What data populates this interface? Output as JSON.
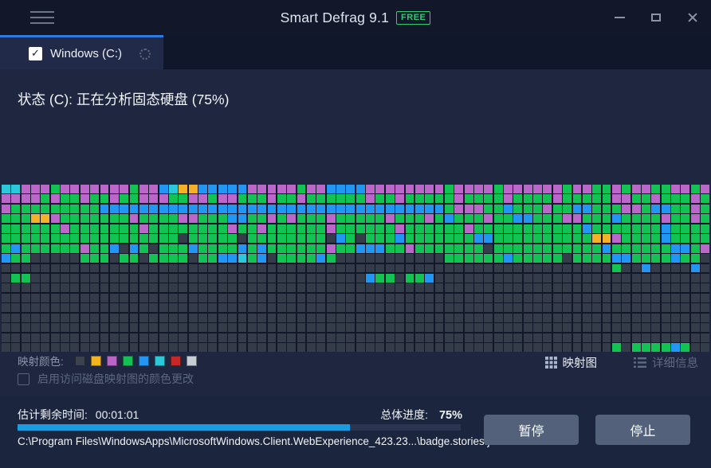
{
  "titlebar": {
    "title": "Smart Defrag 9.1",
    "badge": "FREE"
  },
  "tab": {
    "label": "Windows (C:)",
    "check_glyph": "✓"
  },
  "status": {
    "text": "状态 (C): 正在分析固态硬盘 (75%)"
  },
  "disk_map": {
    "columns": 72,
    "rows": 17,
    "palette": {
      "G": "#12c353",
      "P": "#bb66c9",
      "B": "#2196f3",
      "C": "#2bc8d9",
      "O": "#f5b229",
      "E": "#343c49"
    },
    "cells": [
      "CCPPPGPPPPPPPGPPBCOOBBBBBPPPPPGPPBBBBPPPPPPPPGPPPPGPPPPPPGPPGGPGPPGGPPGP",
      "PPPPGPGGPGGPGGPPPGGPPGPPGGGPGGPGGGGGGPGGPGGGGGPGGGGPGGGGPGGGGGPPGGPGGGPG",
      "PGGGGGGGGGBBBBBBBBBBBBBBBBBBBBBBBBBBBBBBBBBBBGPPPGGBGGGPGGBBGGGPPGBBGGPG",
      "GGGOOPGGGGGGGPGGGGPPGGGBBGGPGPGGGPGGGGGPGGGPGBGGGPGGBBGGGPPGGGBGGGGPGGPG",
      "GGGGGGPGGGGGGGPGGGGGGGGPGGPGGGGGGPGGGGGGPGGGGGGPGGGGGGGGGGGBGGGGGGGBGGGG",
      "GGGGGGGGGGGGGGGGGGEGGGGGEGGGGGGGGEBGEGGGBGGGGGGGBBGGGGGGGGGGOOPGGGGBGGGG",
      "GBGGGGGGPGGBEBGEGGGBGGGGBGBGGGGGGPGGBBBGGPGGGGGGGEGGGGGGGGGGGBGGGGGGBBGP",
      "BGGEEEEEGGGEGGEGGGGEGGBBCGBEGGGGBGEEEEEEEEEEEGGGGGGBGGGGGEGGGGBBGGGGBGGE",
      "EEEEEEEEEEEEEEEEEEEEEEEEEEEEEEEEEEEEEEEEEEEEEEEEEEEEEEEEEEEEEEGEEBEEEEBE",
      "EGGEEEEEEEEEEEEEEEEEEEEEEEEEEEEEEEEEEBGGEGGBEEEEEEEEEEEEEEEEEEEEEEEEEEEE",
      "EEEEEEEEEEEEEEEEEEEEEEEEEEEEEEEEEEEEEEEEEEEEEEEEEEEEEEEEEEEEEEEEEEEEEEEE",
      "EEEEEEEEEEEEEEEEEEEEEEEEEEEEEEEEEEEEEEEEEEEEEEEEEEEEEEEEEEEEEEEEEEEEEEEE",
      "EEEEEEEEEEEEEEEEEEEEEEEEEEEEEEEEEEEEEEEEEEEEEEEEEEEEEEEEEEEEEEEEEEEEEEEE",
      "EEEEEEEEEEEEEEEEEEEEEEEEEEEEEEEEEEEEEEEEEEEEEEEEEEEEEEEEEEEEEEEEEEEEEEEE",
      "EEEEEEEEEEEEEEEEEEEEEEEEEEEEEEEEEEEEEEEEEEEEEEEEEEEEEEEEEEEEEEEEEEEEEEEE",
      "EEEEEEEEEEEEEEEEEEEEEEEEEEEEEEEEEEEEEEEEEEEEEEEEEEEEEEEEEEEEEEEEEEEEEEEE",
      "EEEEEEEEEEEEEEEEEEEEEEEEEEEEEEEEEEEEEEEEEEEEEEEEEEEEEEEEEEEEEEGEGGGGBG"
    ]
  },
  "legend": {
    "label": "映射颜色:",
    "colors": [
      "#3d434e",
      "#f2b51d",
      "#bb64c8",
      "#12c353",
      "#2196f3",
      "#2bc8d9",
      "#c62828",
      "#c6cdd3"
    ]
  },
  "views": {
    "map_label": "映射图",
    "details_label": "详细信息"
  },
  "options": {
    "color_change_label": "启用访问磁盘映射图的颜色更改"
  },
  "progress_panel": {
    "time_label": "估计剩余时间:",
    "time_value": "00:01:01",
    "overall_label": "总体进度:",
    "overall_value": "75%",
    "percent": 75,
    "path": "C:\\Program Files\\WindowsApps\\MicrosoftWindows.Client.WebExperience_423.23...\\badge.stories.js",
    "accent": "#1a9de0"
  },
  "actions": {
    "pause_label": "暂停",
    "stop_label": "停止"
  }
}
